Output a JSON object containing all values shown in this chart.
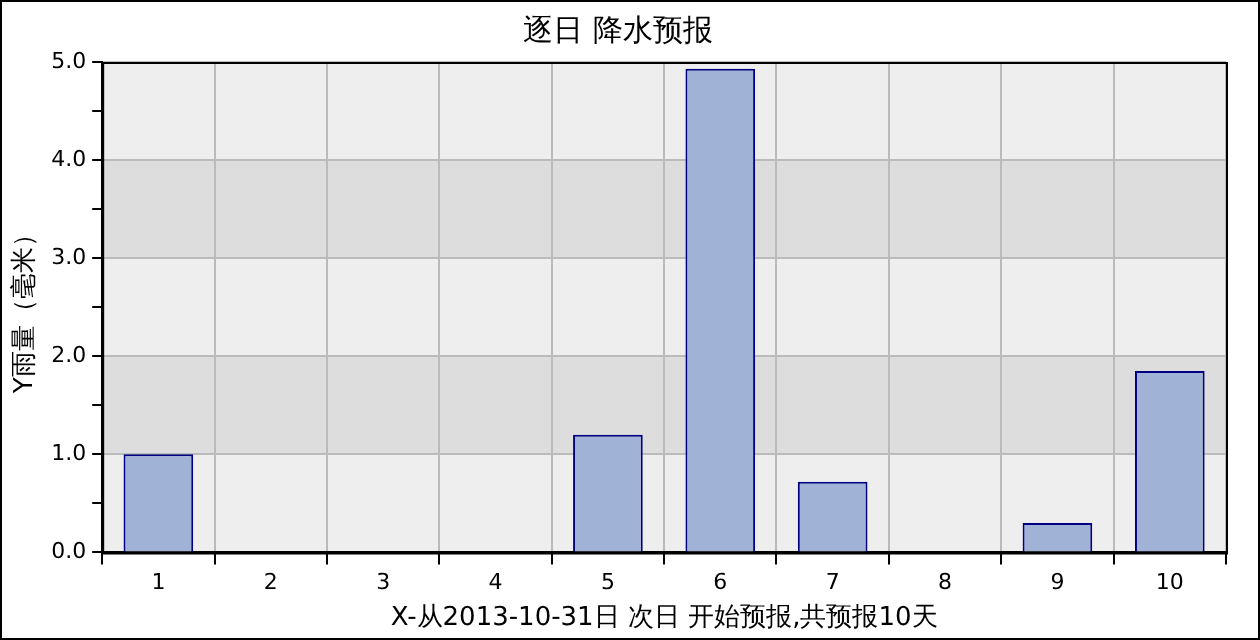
{
  "chart_data": {
    "type": "bar",
    "title": "逐日 降水预报",
    "xlabel": "X-从2013-10-31日 次日 开始预报,共预报10天",
    "ylabel": "Y雨量（毫米）",
    "categories": [
      "1",
      "2",
      "3",
      "4",
      "5",
      "6",
      "7",
      "8",
      "9",
      "10"
    ],
    "values": [
      1.0,
      0,
      0,
      0,
      1.2,
      4.93,
      0.72,
      0,
      0.3,
      1.85
    ],
    "color": "#a0b2d6",
    "ylim": [
      0,
      5
    ],
    "yticks": [
      {
        "value": 0,
        "label": "0.0"
      },
      {
        "value": 0.5,
        "label": null
      },
      {
        "value": 1,
        "label": "1.0"
      },
      {
        "value": 1.5,
        "label": null
      },
      {
        "value": 2,
        "label": "2.0"
      },
      {
        "value": 2.5,
        "label": null
      },
      {
        "value": 3,
        "label": "3.0"
      },
      {
        "value": 3.5,
        "label": null
      },
      {
        "value": 4,
        "label": "4.0"
      },
      {
        "value": 4.5,
        "label": null
      },
      {
        "value": 5,
        "label": "5.0"
      }
    ],
    "grid": true
  }
}
